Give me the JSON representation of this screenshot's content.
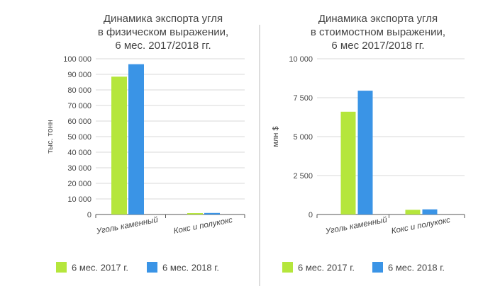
{
  "chart_data": [
    {
      "type": "bar",
      "title_lines": [
        "Динамика экспорта угля",
        "в физическом выражении,",
        "6 мес. 2017/2018 гг."
      ],
      "ylabel": "тыс. тонн",
      "xlabel": "",
      "categories": [
        "Уголь каменный",
        "Кокс и полукокс"
      ],
      "series": [
        {
          "name": "6 мес. 2017 г.",
          "color": "#b5e63c",
          "values": [
            88500,
            900
          ]
        },
        {
          "name": "6 мес. 2018 г.",
          "color": "#3a94e6",
          "values": [
            96500,
            1000
          ]
        }
      ],
      "ylim": [
        0,
        100000
      ],
      "yticks": [
        0,
        10000,
        20000,
        30000,
        40000,
        50000,
        60000,
        70000,
        80000,
        90000,
        100000
      ],
      "ytick_labels": [
        "0",
        "10 000",
        "20 000",
        "30 000",
        "40 000",
        "50 000",
        "60 000",
        "70 000",
        "80 000",
        "90 000",
        "100 000"
      ],
      "grid": true,
      "legend": "bottom"
    },
    {
      "type": "bar",
      "title_lines": [
        "Динамика экспорта угля",
        "в стоимостном выражении,",
        "6 мес 2017/2018 гг."
      ],
      "ylabel": "млн $",
      "xlabel": "",
      "categories": [
        "Уголь каменный",
        "Кокс и полукокс"
      ],
      "series": [
        {
          "name": "6 мес. 2017 г.",
          "color": "#b5e63c",
          "values": [
            6600,
            300
          ]
        },
        {
          "name": "6 мес. 2018 г.",
          "color": "#3a94e6",
          "values": [
            7950,
            330
          ]
        }
      ],
      "ylim": [
        0,
        10000
      ],
      "yticks": [
        0,
        2500,
        5000,
        7500,
        10000
      ],
      "ytick_labels": [
        "0",
        "2 500",
        "5 000",
        "7 500",
        "10 000"
      ],
      "grid": true,
      "legend": "bottom"
    }
  ]
}
